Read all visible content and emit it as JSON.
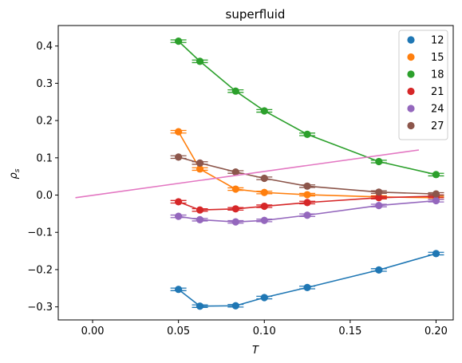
{
  "chart_data": {
    "type": "scatter",
    "title": "superfluid",
    "xlabel": "T",
    "ylabel": "ρ",
    "ylabel_subscript": "s",
    "xlim": [
      -0.02,
      0.21
    ],
    "ylim": [
      -0.335,
      0.455
    ],
    "x_ticks": [
      0.0,
      0.05,
      0.1,
      0.15,
      0.2
    ],
    "x_tick_labels": [
      "0.00",
      "0.05",
      "0.10",
      "0.15",
      "0.20"
    ],
    "y_ticks": [
      -0.3,
      -0.2,
      -0.1,
      0.0,
      0.1,
      0.2,
      0.3,
      0.4
    ],
    "y_tick_labels": [
      "−0.3",
      "−0.2",
      "−0.1",
      "0.0",
      "0.1",
      "0.2",
      "0.3",
      "0.4"
    ],
    "grid": false,
    "legend_position": "top-right",
    "series": [
      {
        "name": "12",
        "color": "#1f77b4",
        "x": [
          0.05,
          0.0625,
          0.0833,
          0.1,
          0.125,
          0.1667,
          0.2
        ],
        "y": [
          -0.253,
          -0.298,
          -0.297,
          -0.275,
          -0.248,
          -0.201,
          -0.157
        ]
      },
      {
        "name": "15",
        "color": "#ff7f0e",
        "x": [
          0.05,
          0.0625,
          0.0833,
          0.1,
          0.125,
          0.1667,
          0.2
        ],
        "y": [
          0.17,
          0.07,
          0.016,
          0.007,
          0.001,
          -0.005,
          -0.007
        ]
      },
      {
        "name": "18",
        "color": "#2ca02c",
        "x": [
          0.05,
          0.0625,
          0.0833,
          0.1,
          0.125,
          0.1667,
          0.2
        ],
        "y": [
          0.413,
          0.359,
          0.279,
          0.226,
          0.163,
          0.09,
          0.055
        ]
      },
      {
        "name": "21",
        "color": "#d62728",
        "x": [
          0.05,
          0.0625,
          0.0833,
          0.1,
          0.125,
          0.1667,
          0.2
        ],
        "y": [
          -0.018,
          -0.04,
          -0.037,
          -0.03,
          -0.02,
          -0.007,
          -0.003
        ]
      },
      {
        "name": "24",
        "color": "#9467bd",
        "x": [
          0.05,
          0.0625,
          0.0833,
          0.1,
          0.125,
          0.1667,
          0.2
        ],
        "y": [
          -0.057,
          -0.066,
          -0.072,
          -0.068,
          -0.054,
          -0.028,
          -0.015
        ]
      },
      {
        "name": "27",
        "color": "#8c564b",
        "x": [
          0.05,
          0.0625,
          0.0833,
          0.1,
          0.125,
          0.1667,
          0.2
        ],
        "y": [
          0.102,
          0.086,
          0.062,
          0.045,
          0.024,
          0.008,
          0.003
        ]
      }
    ],
    "fit_line": {
      "color": "#e377c2",
      "x": [
        -0.01,
        0.19
      ],
      "y": [
        -0.007,
        0.121
      ]
    }
  }
}
